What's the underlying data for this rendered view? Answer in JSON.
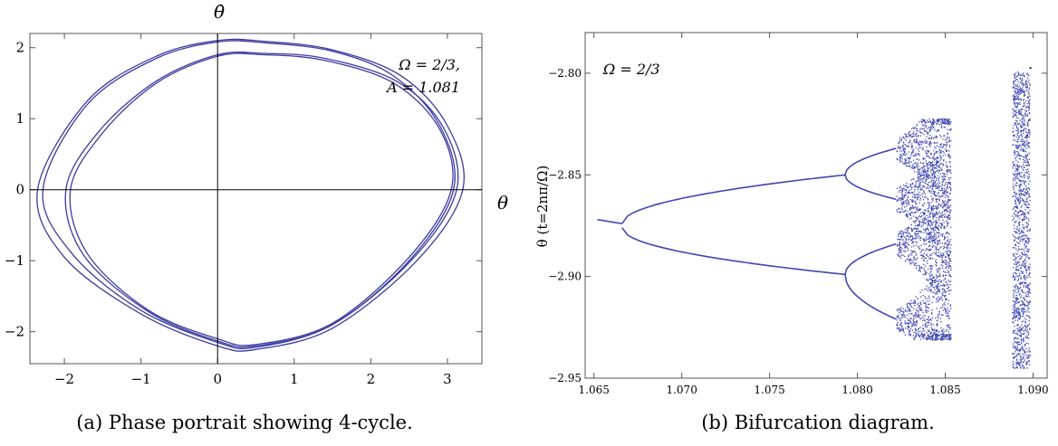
{
  "colors": {
    "curve": "#3b3ba0",
    "points": "#3f48b3",
    "axis": "#000000",
    "frame": "#555555"
  },
  "chart_data": [
    {
      "type": "line",
      "title": "",
      "caption": "(a) Phase portrait showing 4-cycle.",
      "xlabel": "θ",
      "ylabel": "θ̇",
      "xlim": [
        -2.45,
        3.45
      ],
      "ylim": [
        -2.45,
        2.2
      ],
      "xticks": [
        -2,
        -1,
        0,
        1,
        2,
        3
      ],
      "xtick_labels": [
        "−2",
        "−1",
        "0",
        "1",
        "2",
        "3"
      ],
      "yticks": [
        -2,
        -1,
        0,
        1,
        2
      ],
      "ytick_labels": [
        "−2",
        "−1",
        "0",
        "1",
        "2"
      ],
      "annotation": [
        "Ω = 2/3,",
        "A = 1.081"
      ],
      "series": [
        {
          "values": [
            {
              "x": 3.08,
              "y": 0.0
            },
            {
              "x": 2.9,
              "y": 0.9
            },
            {
              "x": 2.3,
              "y": 1.6
            },
            {
              "x": 1.5,
              "y": 1.95
            },
            {
              "x": 0.6,
              "y": 2.07
            },
            {
              "x": 0.0,
              "y": 2.08
            },
            {
              "x": -0.8,
              "y": 1.85
            },
            {
              "x": -1.7,
              "y": 1.2
            },
            {
              "x": -2.28,
              "y": 0.0
            },
            {
              "x": -1.9,
              "y": -0.9
            },
            {
              "x": -1.0,
              "y": -1.7
            },
            {
              "x": 0.0,
              "y": -2.15
            },
            {
              "x": 0.5,
              "y": -2.22
            },
            {
              "x": 1.5,
              "y": -1.9
            },
            {
              "x": 2.5,
              "y": -1.0
            }
          ]
        },
        {
          "values": [
            {
              "x": 3.2,
              "y": 0.0
            },
            {
              "x": 3.0,
              "y": 0.9
            },
            {
              "x": 2.4,
              "y": 1.6
            },
            {
              "x": 1.5,
              "y": 1.97
            },
            {
              "x": 0.6,
              "y": 2.09
            },
            {
              "x": 0.0,
              "y": 2.1
            },
            {
              "x": -0.8,
              "y": 1.88
            },
            {
              "x": -1.7,
              "y": 1.25
            },
            {
              "x": -2.35,
              "y": 0.0
            },
            {
              "x": -2.0,
              "y": -0.95
            },
            {
              "x": -1.0,
              "y": -1.75
            },
            {
              "x": 0.0,
              "y": -2.2
            },
            {
              "x": 0.5,
              "y": -2.25
            },
            {
              "x": 1.5,
              "y": -1.95
            },
            {
              "x": 2.6,
              "y": -1.0
            }
          ]
        },
        {
          "values": [
            {
              "x": 3.05,
              "y": 0.0
            },
            {
              "x": 2.9,
              "y": 0.85
            },
            {
              "x": 2.3,
              "y": 1.5
            },
            {
              "x": 1.4,
              "y": 1.82
            },
            {
              "x": 0.6,
              "y": 1.9
            },
            {
              "x": 0.0,
              "y": 1.88
            },
            {
              "x": -0.8,
              "y": 1.5
            },
            {
              "x": -1.5,
              "y": 0.8
            },
            {
              "x": -1.92,
              "y": 0.0
            },
            {
              "x": -1.7,
              "y": -0.9
            },
            {
              "x": -0.9,
              "y": -1.7
            },
            {
              "x": 0.0,
              "y": -2.1
            },
            {
              "x": 0.5,
              "y": -2.18
            },
            {
              "x": 1.5,
              "y": -1.88
            },
            {
              "x": 2.5,
              "y": -0.95
            }
          ]
        },
        {
          "values": [
            {
              "x": 3.12,
              "y": 0.0
            },
            {
              "x": 2.95,
              "y": 0.87
            },
            {
              "x": 2.35,
              "y": 1.52
            },
            {
              "x": 1.4,
              "y": 1.85
            },
            {
              "x": 0.6,
              "y": 1.92
            },
            {
              "x": 0.0,
              "y": 1.9
            },
            {
              "x": -0.8,
              "y": 1.53
            },
            {
              "x": -1.55,
              "y": 0.82
            },
            {
              "x": -1.98,
              "y": 0.0
            },
            {
              "x": -1.75,
              "y": -0.92
            },
            {
              "x": -0.9,
              "y": -1.72
            },
            {
              "x": 0.0,
              "y": -2.13
            },
            {
              "x": 0.5,
              "y": -2.2
            },
            {
              "x": 1.5,
              "y": -1.9
            },
            {
              "x": 2.55,
              "y": -0.97
            }
          ]
        }
      ]
    },
    {
      "type": "scatter",
      "title": "",
      "caption": "(b) Bifurcation diagram.",
      "xlabel": "",
      "ylabel": "θ (t=2nπ/Ω)",
      "xlim": [
        1.0645,
        1.0908
      ],
      "ylim": [
        -2.95,
        -2.78
      ],
      "xticks": [
        1.065,
        1.07,
        1.075,
        1.08,
        1.085,
        1.09
      ],
      "xtick_labels": [
        "1.065",
        "1.070",
        "1.075",
        "1.080",
        "1.085",
        "1.090"
      ],
      "yticks": [
        -2.95,
        -2.9,
        -2.85,
        -2.8
      ],
      "ytick_labels": [
        "−2.95",
        "−2.90",
        "−2.85",
        "−2.80"
      ],
      "annotation": [
        "Ω = 2/3"
      ],
      "series": [
        {
          "description": "period-doubling branches",
          "branches": [
            {
              "x": [
                1.0652,
                1.0666
              ],
              "y": [
                -2.872,
                -2.874
              ]
            },
            {
              "x": [
                1.0666,
                1.0793
              ],
              "y": [
                -2.874,
                -2.85
              ]
            },
            {
              "x": [
                1.0666,
                1.0793
              ],
              "y": [
                -2.876,
                -2.899
              ]
            },
            {
              "x": [
                1.0793,
                1.0822
              ],
              "y": [
                -2.85,
                -2.837
              ]
            },
            {
              "x": [
                1.0793,
                1.0822
              ],
              "y": [
                -2.85,
                -2.862
              ]
            },
            {
              "x": [
                1.0793,
                1.0822
              ],
              "y": [
                -2.899,
                -2.884
              ]
            },
            {
              "x": [
                1.0793,
                1.0822
              ],
              "y": [
                -2.899,
                -2.921
              ]
            }
          ],
          "chaotic_band": {
            "x": [
              1.0822,
              1.0853
            ],
            "y": [
              -2.931,
              -2.822
            ]
          },
          "window_band": {
            "x": [
              1.0888,
              1.0898
            ],
            "y": [
              -2.945,
              -2.799
            ]
          },
          "isolated_point": {
            "x": 1.0898,
            "y": -2.797
          }
        }
      ]
    }
  ]
}
